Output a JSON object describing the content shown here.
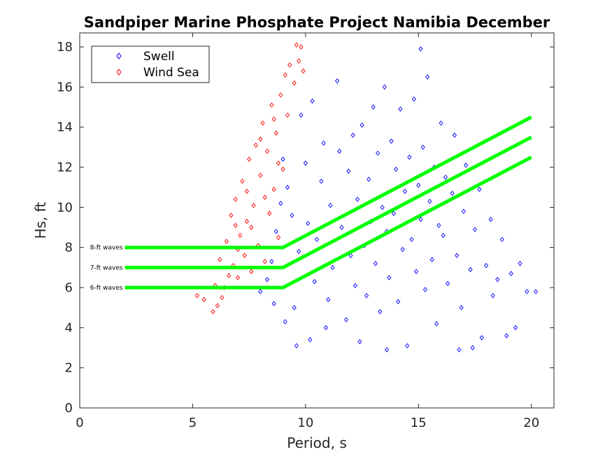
{
  "chart_data": {
    "type": "scatter",
    "title": "Sandpiper Marine Phosphate Project Namibia December",
    "xlabel": "Period, s",
    "ylabel": "Hs, ft",
    "xlim": [
      0,
      21
    ],
    "ylim": [
      0,
      18.7
    ],
    "xticks": [
      0,
      5,
      10,
      15,
      20
    ],
    "yticks": [
      0,
      2,
      4,
      6,
      8,
      10,
      12,
      14,
      16,
      18
    ],
    "grid": false,
    "legend": {
      "placement": "top-left",
      "entries": [
        "Swell",
        "Wind Sea"
      ]
    },
    "colors": {
      "swell": "#0000ff",
      "windsea": "#ff0000",
      "threshold": "#00ff00",
      "axis": "#262626"
    },
    "series": [
      {
        "name": "Swell",
        "marker": "diamond",
        "points": [
          [
            8.0,
            5.8
          ],
          [
            8.3,
            6.4
          ],
          [
            8.5,
            7.3
          ],
          [
            8.7,
            8.8
          ],
          [
            8.9,
            10.2
          ],
          [
            9.0,
            12.4
          ],
          [
            9.2,
            11.0
          ],
          [
            9.4,
            9.6
          ],
          [
            9.5,
            5.0
          ],
          [
            9.7,
            7.8
          ],
          [
            9.8,
            14.6
          ],
          [
            10.0,
            12.2
          ],
          [
            10.1,
            9.2
          ],
          [
            10.3,
            15.3
          ],
          [
            10.4,
            6.3
          ],
          [
            10.5,
            8.4
          ],
          [
            10.7,
            11.3
          ],
          [
            10.8,
            13.2
          ],
          [
            11.0,
            5.4
          ],
          [
            11.1,
            10.1
          ],
          [
            11.2,
            7.0
          ],
          [
            11.4,
            16.3
          ],
          [
            11.5,
            12.8
          ],
          [
            11.6,
            9.0
          ],
          [
            11.8,
            4.4
          ],
          [
            11.9,
            11.8
          ],
          [
            12.0,
            7.6
          ],
          [
            12.1,
            13.6
          ],
          [
            12.2,
            6.1
          ],
          [
            12.3,
            10.4
          ],
          [
            12.5,
            14.1
          ],
          [
            12.6,
            8.1
          ],
          [
            12.7,
            5.6
          ],
          [
            12.8,
            11.4
          ],
          [
            12.9,
            9.3
          ],
          [
            13.0,
            15.0
          ],
          [
            13.1,
            7.2
          ],
          [
            13.2,
            12.7
          ],
          [
            13.3,
            4.8
          ],
          [
            13.4,
            10.0
          ],
          [
            13.5,
            16.0
          ],
          [
            13.6,
            8.8
          ],
          [
            13.7,
            6.5
          ],
          [
            13.8,
            13.3
          ],
          [
            13.9,
            9.7
          ],
          [
            14.0,
            11.9
          ],
          [
            14.1,
            5.3
          ],
          [
            14.2,
            14.9
          ],
          [
            14.3,
            7.9
          ],
          [
            14.4,
            10.8
          ],
          [
            14.5,
            3.1
          ],
          [
            14.6,
            12.5
          ],
          [
            14.7,
            8.4
          ],
          [
            14.8,
            15.4
          ],
          [
            14.9,
            6.8
          ],
          [
            15.0,
            11.1
          ],
          [
            15.1,
            9.4
          ],
          [
            15.2,
            13.0
          ],
          [
            15.3,
            5.9
          ],
          [
            15.4,
            16.5
          ],
          [
            15.5,
            10.3
          ],
          [
            15.6,
            7.4
          ],
          [
            15.7,
            12.0
          ],
          [
            15.8,
            4.2
          ],
          [
            15.9,
            9.1
          ],
          [
            16.0,
            14.2
          ],
          [
            16.1,
            8.6
          ],
          [
            16.2,
            11.5
          ],
          [
            16.3,
            6.2
          ],
          [
            16.5,
            10.7
          ],
          [
            16.6,
            13.6
          ],
          [
            16.7,
            7.6
          ],
          [
            16.9,
            5.0
          ],
          [
            17.0,
            9.8
          ],
          [
            17.1,
            12.1
          ],
          [
            17.3,
            6.9
          ],
          [
            17.4,
            3.0
          ],
          [
            17.5,
            8.9
          ],
          [
            17.7,
            10.9
          ],
          [
            17.8,
            3.5
          ],
          [
            18.0,
            7.1
          ],
          [
            18.2,
            9.4
          ],
          [
            18.3,
            5.6
          ],
          [
            18.5,
            6.4
          ],
          [
            18.7,
            8.4
          ],
          [
            18.9,
            3.6
          ],
          [
            19.1,
            6.7
          ],
          [
            19.3,
            4.0
          ],
          [
            19.5,
            7.2
          ],
          [
            19.8,
            5.8
          ],
          [
            20.2,
            5.8
          ],
          [
            15.1,
            17.9
          ],
          [
            9.6,
            3.1
          ],
          [
            10.2,
            3.4
          ],
          [
            12.4,
            3.3
          ],
          [
            8.6,
            5.2
          ],
          [
            9.1,
            4.3
          ],
          [
            10.9,
            4.0
          ],
          [
            13.6,
            2.9
          ],
          [
            16.8,
            2.9
          ]
        ]
      },
      {
        "name": "Wind Sea",
        "marker": "diamond",
        "points": [
          [
            5.2,
            5.6
          ],
          [
            5.5,
            5.4
          ],
          [
            5.9,
            4.8
          ],
          [
            6.0,
            6.1
          ],
          [
            6.2,
            7.4
          ],
          [
            6.3,
            5.5
          ],
          [
            6.5,
            8.3
          ],
          [
            6.6,
            6.6
          ],
          [
            6.7,
            9.6
          ],
          [
            6.8,
            7.1
          ],
          [
            6.9,
            10.4
          ],
          [
            7.0,
            6.5
          ],
          [
            7.1,
            8.6
          ],
          [
            7.2,
            11.3
          ],
          [
            7.3,
            7.6
          ],
          [
            7.4,
            9.3
          ],
          [
            7.5,
            12.4
          ],
          [
            7.6,
            6.8
          ],
          [
            7.7,
            10.1
          ],
          [
            7.8,
            13.1
          ],
          [
            7.9,
            8.1
          ],
          [
            8.0,
            11.6
          ],
          [
            8.1,
            14.2
          ],
          [
            8.2,
            7.3
          ],
          [
            8.3,
            12.8
          ],
          [
            8.4,
            9.7
          ],
          [
            8.5,
            15.1
          ],
          [
            8.6,
            10.9
          ],
          [
            8.7,
            13.7
          ],
          [
            8.8,
            8.5
          ],
          [
            8.9,
            15.6
          ],
          [
            9.0,
            11.9
          ],
          [
            9.1,
            16.6
          ],
          [
            9.2,
            14.6
          ],
          [
            9.3,
            17.1
          ],
          [
            9.5,
            16.2
          ],
          [
            9.6,
            18.1
          ],
          [
            9.7,
            17.3
          ],
          [
            9.8,
            18.0
          ],
          [
            9.9,
            16.8
          ],
          [
            6.4,
            6.0
          ],
          [
            7.0,
            7.9
          ],
          [
            7.6,
            9.0
          ],
          [
            8.2,
            10.5
          ],
          [
            8.8,
            12.2
          ],
          [
            6.1,
            5.1
          ],
          [
            6.9,
            9.1
          ],
          [
            7.4,
            10.8
          ],
          [
            8.0,
            13.4
          ],
          [
            8.6,
            14.4
          ]
        ]
      }
    ],
    "threshold_lines": [
      {
        "label": "8-ft waves",
        "x": [
          2,
          9,
          20
        ],
        "y": [
          8,
          8,
          14.5
        ]
      },
      {
        "label": "7-ft waves",
        "x": [
          2,
          9,
          20
        ],
        "y": [
          7,
          7,
          13.5
        ]
      },
      {
        "label": "6-ft waves",
        "x": [
          2,
          9,
          20
        ],
        "y": [
          6,
          6,
          12.5
        ]
      }
    ]
  }
}
